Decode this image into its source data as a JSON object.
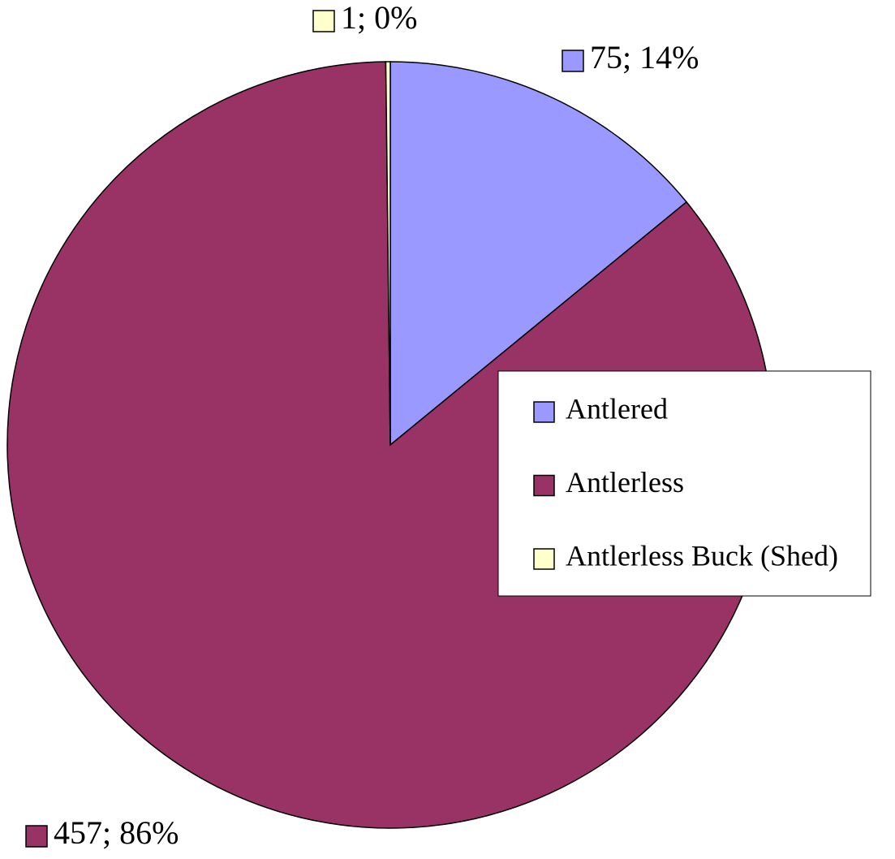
{
  "chart_data": {
    "type": "pie",
    "categories": [
      "Antlered",
      "Antlerless",
      "Antlerless Buck (Shed)"
    ],
    "values": [
      75,
      457,
      1
    ],
    "value_labels": [
      "75; 14%",
      "457; 86%",
      "1; 0%"
    ],
    "colors": [
      "#9999ff",
      "#993366",
      "#ffffcc"
    ],
    "legend": "right"
  }
}
